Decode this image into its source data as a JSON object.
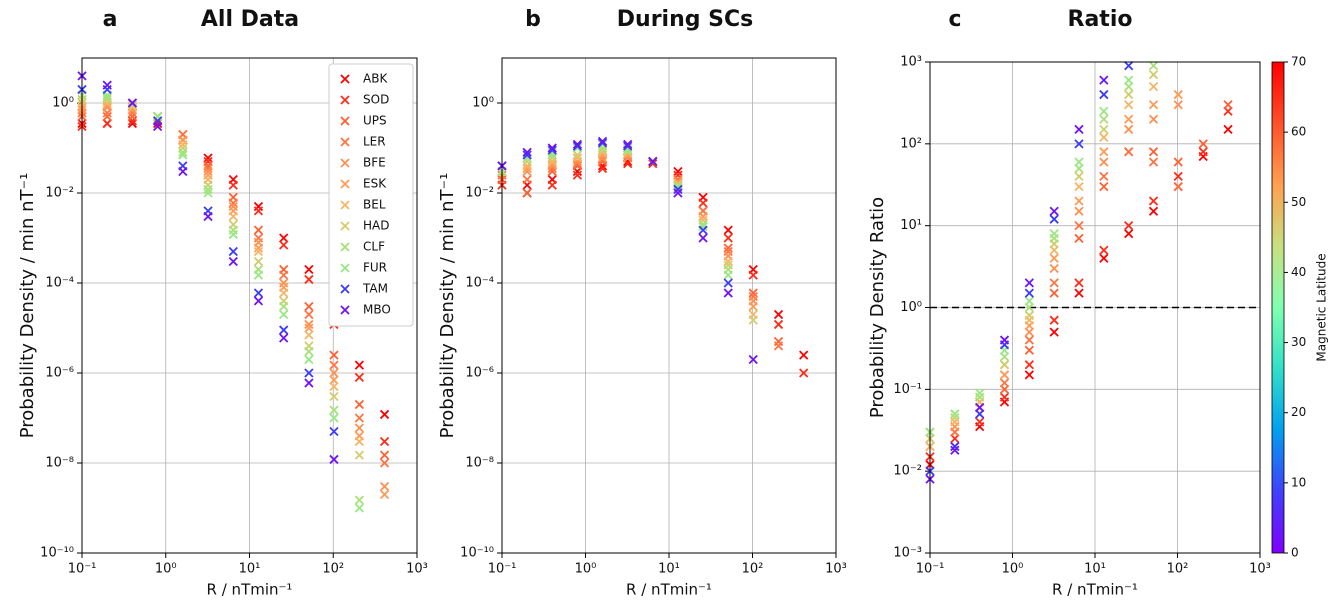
{
  "chart_data": [
    {
      "type": "scatter",
      "label": "a",
      "title": "All Data",
      "x_label": "R / nTmin⁻¹",
      "y_label": "Probability Density / min nT⁻¹",
      "log_x": true,
      "log_y": true,
      "grid": true,
      "legend": "upper right",
      "xlim": [
        0.1,
        1000
      ],
      "ylim": [
        1e-10,
        10
      ],
      "xticks": [
        {
          "value": 0.1,
          "label": "10⁻¹"
        },
        {
          "value": 1,
          "label": "10⁰"
        },
        {
          "value": 10,
          "label": "10¹"
        },
        {
          "value": 100,
          "label": "10²"
        },
        {
          "value": 1000,
          "label": "10³"
        }
      ],
      "yticks": [
        {
          "value": 1e-10,
          "label": "10⁻¹⁰"
        },
        {
          "value": 1e-08,
          "label": "10⁻⁸"
        },
        {
          "value": 1e-06,
          "label": "10⁻⁶"
        },
        {
          "value": 0.0001,
          "label": "10⁻⁴"
        },
        {
          "value": 0.01,
          "label": "10⁻²"
        },
        {
          "value": 1,
          "label": "10⁰"
        }
      ],
      "x": [
        0.1,
        0.2,
        0.4,
        0.8,
        1.6,
        3.2,
        6.4,
        12.8,
        25.6,
        51.2,
        102,
        205,
        410
      ],
      "series": [
        {
          "name": "ABK",
          "color": "#ff0000",
          "values": [
            0.35,
            0.35,
            0.35,
            0.35,
            0.15,
            0.06,
            0.02,
            0.005,
            0.001,
            0.0002,
            2e-05,
            1.5e-06,
            1.2e-07
          ]
        },
        {
          "name": "SOD",
          "color": "#ff2b16",
          "values": [
            0.3,
            0.35,
            0.4,
            0.4,
            0.15,
            0.05,
            0.015,
            0.004,
            0.0007,
            0.00012,
            1.2e-05,
            8e-07,
            3e-08
          ]
        },
        {
          "name": "UPS",
          "color": "#ff6030",
          "values": [
            0.5,
            0.5,
            0.5,
            0.5,
            0.2,
            0.04,
            0.008,
            0.0015,
            0.0002,
            3e-05,
            2.5e-06,
            2e-07,
            1.5e-08
          ]
        },
        {
          "name": "LER",
          "color": "#ff7340",
          "values": [
            0.6,
            0.6,
            0.6,
            0.5,
            0.2,
            0.035,
            0.006,
            0.001,
            0.00015,
            2e-05,
            1.5e-06,
            1e-07,
            1e-08
          ]
        },
        {
          "name": "BFE",
          "color": "#ff8f50",
          "values": [
            0.7,
            0.8,
            0.7,
            0.5,
            0.15,
            0.03,
            0.005,
            0.0008,
            0.0001,
            1.2e-05,
            1e-06,
            6e-08,
            3e-09
          ]
        },
        {
          "name": "ESK",
          "color": "#ff9a55",
          "values": [
            0.8,
            0.9,
            0.8,
            0.5,
            0.15,
            0.025,
            0.004,
            0.0006,
            8e-05,
            1e-05,
            7e-07,
            4e-08,
            2e-09
          ]
        },
        {
          "name": "BEL",
          "color": "#f5b565",
          "values": [
            1,
            1,
            0.8,
            0.5,
            0.12,
            0.02,
            0.003,
            0.0005,
            6e-05,
            7e-06,
            5e-07,
            3e-08,
            null
          ]
        },
        {
          "name": "HAD",
          "color": "#d2cc6c",
          "values": [
            1.2,
            1.2,
            0.9,
            0.5,
            0.1,
            0.015,
            0.002,
            0.0003,
            4e-05,
            4e-06,
            3e-07,
            1.5e-08,
            null
          ]
        },
        {
          "name": "CLF",
          "color": "#a8e078",
          "values": [
            1.5,
            1.3,
            1,
            0.5,
            0.08,
            0.012,
            0.0015,
            0.0002,
            3e-05,
            3e-06,
            1.5e-07,
            1.5e-09,
            null
          ]
        },
        {
          "name": "FUR",
          "color": "#96e882",
          "values": [
            2,
            1.5,
            1,
            0.5,
            0.07,
            0.01,
            0.0012,
            0.00015,
            2e-05,
            2e-06,
            1e-07,
            1e-09,
            null
          ]
        },
        {
          "name": "TAM",
          "color": "#3a3cfa",
          "values": [
            2,
            2,
            1,
            0.4,
            0.04,
            0.004,
            0.0005,
            6e-05,
            9e-06,
            1e-06,
            5e-08,
            null,
            null
          ]
        },
        {
          "name": "MBO",
          "color": "#7012f8",
          "values": [
            4,
            2.5,
            1,
            0.3,
            0.03,
            0.003,
            0.0003,
            4e-05,
            6e-06,
            6e-07,
            1.2e-08,
            null,
            null
          ]
        }
      ]
    },
    {
      "type": "scatter",
      "label": "b",
      "title": "During SCs",
      "x_label": "R / nTmin⁻¹",
      "y_label": "Probability Density / min nT⁻¹",
      "log_x": true,
      "log_y": true,
      "grid": true,
      "xlim": [
        0.1,
        1000
      ],
      "ylim": [
        1e-10,
        10
      ],
      "xticks": [
        {
          "value": 0.1,
          "label": "10⁻¹"
        },
        {
          "value": 1,
          "label": "10⁰"
        },
        {
          "value": 10,
          "label": "10¹"
        },
        {
          "value": 100,
          "label": "10²"
        },
        {
          "value": 1000,
          "label": "10³"
        }
      ],
      "yticks": [
        {
          "value": 1e-10,
          "label": "10⁻¹⁰"
        },
        {
          "value": 1e-08,
          "label": "10⁻⁸"
        },
        {
          "value": 1e-06,
          "label": "10⁻⁶"
        },
        {
          "value": 0.0001,
          "label": "10⁻⁴"
        },
        {
          "value": 0.01,
          "label": "10⁻²"
        },
        {
          "value": 1,
          "label": "10⁰"
        }
      ],
      "x": [
        0.1,
        0.2,
        0.4,
        0.8,
        1.6,
        3.2,
        6.4,
        12.8,
        25.6,
        51.2,
        102,
        205,
        410
      ],
      "series": [
        {
          "color": "#ff0000",
          "values": [
            0.02,
            0.015,
            0.02,
            0.03,
            0.04,
            0.05,
            0.05,
            0.03,
            0.008,
            0.0015,
            0.0002,
            2e-05,
            2.5e-06
          ]
        },
        {
          "color": "#ff2b16",
          "values": [
            0.015,
            0.01,
            0.015,
            0.025,
            0.035,
            0.045,
            0.045,
            0.025,
            0.006,
            0.001,
            0.00015,
            1.2e-05,
            1e-06
          ]
        },
        {
          "color": "#ff6030",
          "values": [
            0.02,
            0.01,
            0.03,
            0.04,
            0.05,
            0.06,
            0.05,
            0.02,
            0.004,
            0.0006,
            6e-05,
            5e-06,
            null
          ]
        },
        {
          "color": "#ff7340",
          "values": [
            0.025,
            0.02,
            0.035,
            0.045,
            0.055,
            0.06,
            0.05,
            0.02,
            0.004,
            0.0005,
            5e-05,
            4e-06,
            null
          ]
        },
        {
          "color": "#ff8f50",
          "values": [
            0.03,
            0.03,
            0.04,
            0.05,
            0.06,
            0.06,
            0.05,
            0.018,
            0.003,
            0.0004,
            4e-05,
            null,
            null
          ]
        },
        {
          "color": "#ff9a55",
          "values": [
            0.03,
            0.035,
            0.045,
            0.06,
            0.07,
            0.07,
            0.05,
            0.017,
            0.003,
            0.0003,
            3e-05,
            null,
            null
          ]
        },
        {
          "color": "#f5b565",
          "values": [
            0.03,
            0.04,
            0.05,
            0.06,
            0.08,
            0.08,
            0.05,
            0.016,
            0.0025,
            0.0003,
            2e-05,
            null,
            null
          ]
        },
        {
          "color": "#d2cc6c",
          "values": [
            0.03,
            0.05,
            0.06,
            0.07,
            0.09,
            0.08,
            0.05,
            0.015,
            0.002,
            0.00025,
            1.5e-05,
            null,
            null
          ]
        },
        {
          "color": "#a8e078",
          "values": [
            0.03,
            0.06,
            0.07,
            0.1,
            0.1,
            0.09,
            0.05,
            0.014,
            0.002,
            0.0002,
            null,
            null,
            null
          ]
        },
        {
          "color": "#96e882",
          "values": [
            0.03,
            0.06,
            0.08,
            0.1,
            0.12,
            0.1,
            0.05,
            0.013,
            0.0018,
            0.00015,
            null,
            null,
            null
          ]
        },
        {
          "color": "#3a3cfa",
          "values": [
            0.04,
            0.07,
            0.09,
            0.11,
            0.13,
            0.11,
            0.05,
            0.012,
            0.0015,
            0.0001,
            null,
            null,
            null
          ]
        },
        {
          "color": "#7012f8",
          "values": [
            0.04,
            0.08,
            0.1,
            0.12,
            0.14,
            0.12,
            0.05,
            0.01,
            0.001,
            6e-05,
            2e-06,
            null,
            null
          ]
        }
      ]
    },
    {
      "type": "scatter",
      "label": "c",
      "title": "Ratio",
      "x_label": "R / nTmin⁻¹",
      "y_label": "Probability Density Ratio",
      "log_x": true,
      "log_y": true,
      "grid": true,
      "hline": 1,
      "xlim": [
        0.1,
        1000
      ],
      "ylim": [
        0.001,
        1000
      ],
      "xticks": [
        {
          "value": 0.1,
          "label": "10⁻¹"
        },
        {
          "value": 1,
          "label": "10⁰"
        },
        {
          "value": 10,
          "label": "10¹"
        },
        {
          "value": 100,
          "label": "10²"
        },
        {
          "value": 1000,
          "label": "10³"
        }
      ],
      "yticks": [
        {
          "value": 0.001,
          "label": "10⁻³"
        },
        {
          "value": 0.01,
          "label": "10⁻²"
        },
        {
          "value": 0.1,
          "label": "10⁻¹"
        },
        {
          "value": 1,
          "label": "10⁰"
        },
        {
          "value": 10,
          "label": "10¹"
        },
        {
          "value": 100,
          "label": "10²"
        },
        {
          "value": 1000,
          "label": "10³"
        }
      ],
      "x": [
        0.1,
        0.2,
        0.4,
        0.8,
        1.6,
        3.2,
        6.4,
        12.8,
        25.6,
        51.2,
        102,
        205,
        410
      ],
      "series": [
        {
          "color": "#ff0000",
          "values": [
            0.012,
            0.02,
            0.035,
            0.07,
            0.15,
            0.5,
            1.5,
            4,
            8,
            15,
            30,
            70,
            150
          ]
        },
        {
          "color": "#ff2b16",
          "values": [
            0.015,
            0.025,
            0.04,
            0.08,
            0.2,
            0.7,
            2,
            5,
            10,
            20,
            40,
            80,
            250
          ]
        },
        {
          "color": "#ff6030",
          "values": [
            0.02,
            0.03,
            0.05,
            0.1,
            0.3,
            1.5,
            7,
            30,
            80,
            80,
            60,
            100,
            300
          ]
        },
        {
          "color": "#ff7340",
          "values": [
            0.025,
            0.03,
            0.06,
            0.12,
            0.4,
            2,
            10,
            40,
            80,
            60,
            30,
            null,
            null
          ]
        },
        {
          "color": "#ff8f50",
          "values": [
            0.03,
            0.035,
            0.06,
            0.15,
            0.5,
            3,
            15,
            60,
            150,
            200,
            300,
            null,
            null
          ]
        },
        {
          "color": "#ff9a55",
          "values": [
            0.03,
            0.04,
            0.07,
            0.15,
            0.6,
            4,
            20,
            80,
            200,
            300,
            400,
            null,
            null
          ]
        },
        {
          "color": "#f5b565",
          "values": [
            0.02,
            0.04,
            0.07,
            0.2,
            0.7,
            5,
            30,
            120,
            300,
            500,
            null,
            null,
            null
          ]
        },
        {
          "color": "#d2cc6c",
          "values": [
            0.025,
            0.045,
            0.08,
            0.2,
            0.8,
            6,
            40,
            150,
            400,
            700,
            null,
            null,
            null
          ]
        },
        {
          "color": "#a8e078",
          "values": [
            0.03,
            0.05,
            0.08,
            0.25,
            1,
            7,
            50,
            200,
            500,
            900,
            null,
            null,
            null
          ]
        },
        {
          "color": "#96e882",
          "values": [
            0.03,
            0.05,
            0.09,
            0.3,
            1.2,
            8,
            60,
            250,
            600,
            null,
            null,
            null,
            null
          ]
        },
        {
          "color": "#3a3cfa",
          "values": [
            0.01,
            0.02,
            0.05,
            0.35,
            1.5,
            12,
            100,
            400,
            900,
            null,
            null,
            null,
            null
          ]
        },
        {
          "color": "#7012f8",
          "values": [
            0.008,
            0.018,
            0.06,
            0.4,
            2,
            15,
            150,
            600,
            null,
            null,
            null,
            null,
            null
          ]
        }
      ],
      "colorbar": {
        "label": "Magnetic Latitude",
        "lim": [
          0,
          70
        ],
        "ticks": [
          0,
          10,
          20,
          30,
          40,
          50,
          60,
          70
        ],
        "colors": [
          "#8000ff",
          "#4040fc",
          "#00a0f0",
          "#30e0c8",
          "#80ffb0",
          "#c8e080",
          "#ffa050",
          "#ff5028",
          "#ff0000"
        ]
      }
    }
  ]
}
